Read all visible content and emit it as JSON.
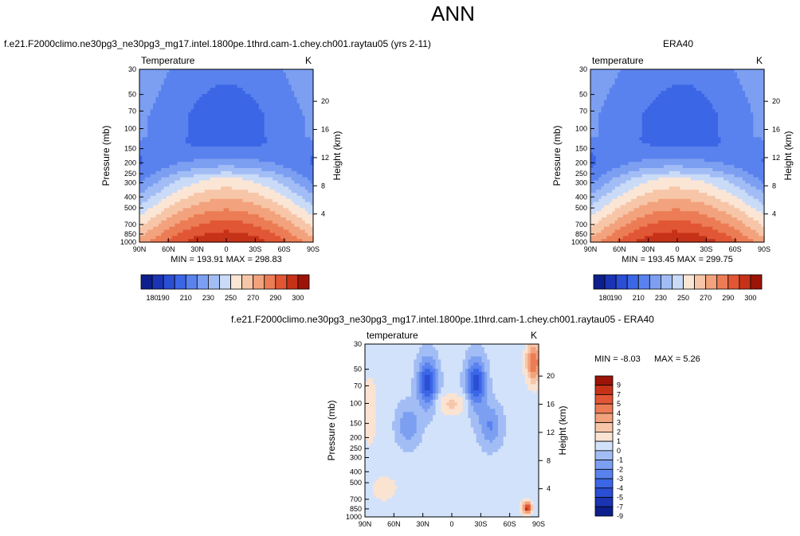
{
  "title": "ANN",
  "chart_data": [
    {
      "type": "heatmap",
      "id": "model",
      "title": "f.e21.F2000climo.ne30pg3_ne30pg3_mg17.intel.1800pe.1thrd.cam-1.chey.ch001.raytau05 (yrs 2-11)",
      "variable": "Temperature",
      "units": "K",
      "xlabel": "",
      "ylabel": "Pressure (mb)",
      "ylabel_right": "Height (km)",
      "x_ticks": [
        "90N",
        "60N",
        "30N",
        "0",
        "30S",
        "60S",
        "90S"
      ],
      "y_ticks": [
        "30",
        "50",
        "70",
        "100",
        "150",
        "200",
        "250",
        "300",
        "400",
        "500",
        "700",
        "850",
        "1000"
      ],
      "y_ticks_right": [
        "20",
        "16",
        "12",
        "8",
        "4"
      ],
      "stats": "MIN = 193.91   MAX = 298.83",
      "min": 193.91,
      "max": 298.83
    },
    {
      "type": "heatmap",
      "id": "obs",
      "title": "ERA40",
      "variable": "temperature",
      "units": "K",
      "xlabel": "",
      "ylabel": "Pressure (mb)",
      "ylabel_right": "Height (km)",
      "x_ticks": [
        "90N",
        "60N",
        "30N",
        "0",
        "30S",
        "60S",
        "90S"
      ],
      "y_ticks": [
        "30",
        "50",
        "70",
        "100",
        "150",
        "200",
        "250",
        "300",
        "400",
        "500",
        "700",
        "850",
        "1000"
      ],
      "y_ticks_right": [
        "20",
        "16",
        "12",
        "8",
        "4"
      ],
      "stats": "MIN = 193.45   MAX = 299.75",
      "min": 193.45,
      "max": 299.75
    },
    {
      "type": "heatmap",
      "id": "diff",
      "title": "f.e21.F2000climo.ne30pg3_ne30pg3_mg17.intel.1800pe.1thrd.cam-1.chey.ch001.raytau05 - ERA40",
      "variable": "temperature",
      "units": "K",
      "xlabel": "",
      "ylabel": "Pressure (mb)",
      "ylabel_right": "Height (km)",
      "x_ticks": [
        "90N",
        "60N",
        "30N",
        "0",
        "30S",
        "60S",
        "90S"
      ],
      "y_ticks": [
        "30",
        "50",
        "70",
        "100",
        "150",
        "200",
        "250",
        "300",
        "400",
        "500",
        "700",
        "850",
        "1000"
      ],
      "y_ticks_right": [
        "20",
        "16",
        "12",
        "8",
        "4"
      ],
      "stats_min": "MIN = -8.03",
      "stats_max": "MAX =   5.26",
      "min": -8.03,
      "max": 5.26
    }
  ],
  "colorbar_abs": {
    "colors": [
      "#0c1f8c",
      "#1a34b4",
      "#2a4ed4",
      "#3b66e6",
      "#5a82ee",
      "#7c9ff2",
      "#a2bdf5",
      "#cadbf8",
      "#fbe6d6",
      "#f7c6a8",
      "#f2a27c",
      "#ec7c55",
      "#e15634",
      "#c63218",
      "#9c1408"
    ],
    "labels": [
      "180",
      "190",
      "210",
      "230",
      "250",
      "270",
      "290",
      "300"
    ]
  },
  "colorbar_diff": {
    "colors": [
      "#0c1f8c",
      "#1a34b4",
      "#2a4ed4",
      "#3b66e6",
      "#5a82ee",
      "#7c9ff2",
      "#a2bdf5",
      "#d2e2fa",
      "#fbe3d2",
      "#f7c6a8",
      "#f2a27c",
      "#ec7c55",
      "#e15634",
      "#c63218",
      "#9c1408"
    ],
    "labels": [
      "-9",
      "-7",
      "-5",
      "-4",
      "-3",
      "-2",
      "-1",
      "0",
      "1",
      "2",
      "3",
      "4",
      "5",
      "7",
      "9"
    ]
  }
}
